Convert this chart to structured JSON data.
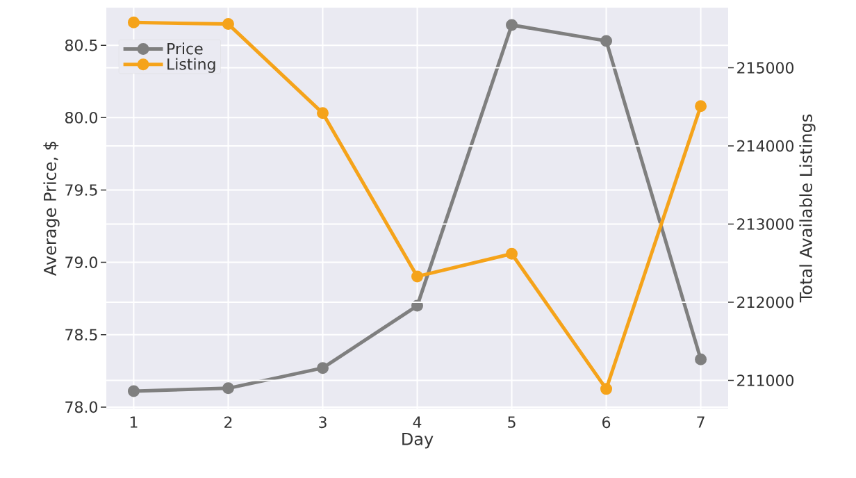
{
  "chart_data": {
    "type": "line",
    "xlabel": "Day",
    "ylabel": "Average Price, $",
    "y2label": "Total Available Listings",
    "x": [
      1,
      2,
      3,
      4,
      5,
      6,
      7
    ],
    "series": [
      {
        "name": "Price",
        "color": "#7f7f7f",
        "values": [
          78.11,
          78.13,
          78.27,
          78.7,
          80.64,
          80.53,
          78.33
        ]
      },
      {
        "name": "Listing",
        "color": "#f5a31a",
        "axis": "y2",
        "values": [
          215580,
          215560,
          214420,
          212330,
          212620,
          210890,
          214510
        ]
      }
    ],
    "xlim": [
      0.71,
      7.29
    ],
    "xticks": [
      1,
      2,
      3,
      4,
      5,
      6,
      7
    ],
    "ylim": [
      77.99,
      80.76
    ],
    "yticks": [
      {
        "value": 78.0,
        "label": "78.0"
      },
      {
        "value": 78.5,
        "label": "78.5"
      },
      {
        "value": 79.0,
        "label": "79.0"
      },
      {
        "value": 79.5,
        "label": "79.5"
      },
      {
        "value": 80.0,
        "label": "80.0"
      },
      {
        "value": 80.5,
        "label": "80.5"
      }
    ],
    "y2lim": [
      210640,
      215770
    ],
    "y2ticks": [
      211000,
      212000,
      213000,
      214000,
      215000
    ],
    "grid": true,
    "legend": "top left",
    "marker": "circle",
    "line_style": "solid"
  }
}
